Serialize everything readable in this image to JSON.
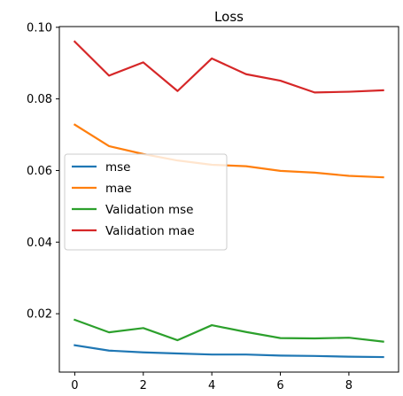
{
  "chart_data": {
    "type": "line",
    "title": "Loss",
    "xlabel": "",
    "ylabel": "",
    "x": [
      0,
      1,
      2,
      3,
      4,
      5,
      6,
      7,
      8,
      9
    ],
    "xlim": [
      -0.45,
      9.45
    ],
    "ylim": [
      0.0037,
      0.1002
    ],
    "xticks": [
      0,
      2,
      4,
      6,
      8
    ],
    "yticks": [
      0.02,
      0.04,
      0.06,
      0.08,
      0.1
    ],
    "xtick_labels": [
      "0",
      "2",
      "4",
      "6",
      "8"
    ],
    "ytick_labels": [
      "0.02",
      "0.04",
      "0.06",
      "0.08",
      "0.10"
    ],
    "grid": false,
    "legend_position": "center-left",
    "series": [
      {
        "name": "mse",
        "color": "#1f77b4",
        "values": [
          0.0112,
          0.0097,
          0.0092,
          0.0089,
          0.0086,
          0.0086,
          0.0083,
          0.0082,
          0.008,
          0.0079
        ]
      },
      {
        "name": "mae",
        "color": "#ff7f0e",
        "values": [
          0.0728,
          0.0668,
          0.0646,
          0.0628,
          0.0616,
          0.0612,
          0.0599,
          0.0594,
          0.0585,
          0.0581
        ]
      },
      {
        "name": "Validation mse",
        "color": "#2ca02c",
        "values": [
          0.0183,
          0.0148,
          0.016,
          0.0126,
          0.0168,
          0.0149,
          0.0132,
          0.0131,
          0.0133,
          0.0122
        ]
      },
      {
        "name": "Validation mae",
        "color": "#d62728",
        "values": [
          0.096,
          0.0865,
          0.0902,
          0.0822,
          0.0913,
          0.0869,
          0.0851,
          0.0818,
          0.082,
          0.0824
        ]
      }
    ]
  }
}
